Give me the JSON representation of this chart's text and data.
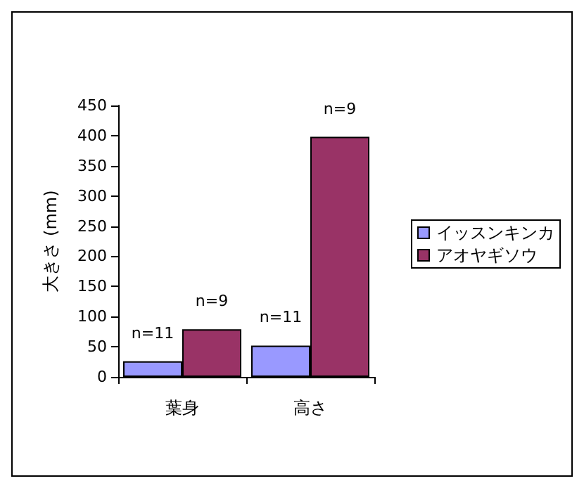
{
  "chart_data": {
    "type": "bar",
    "ylabel": "大きさ (mm)",
    "categories": [
      "葉身",
      "高さ"
    ],
    "series": [
      {
        "name": "イッスンキンカ",
        "color": "#9999ff",
        "values": [
          26,
          52
        ]
      },
      {
        "name": "アオヤギソウ",
        "color": "#993366",
        "values": [
          79,
          398
        ]
      }
    ],
    "annotations": [
      {
        "text": "n=11",
        "x": "葉身",
        "y": 26
      },
      {
        "text": "n=9",
        "x": "葉身",
        "y": 79
      },
      {
        "text": "n=11",
        "x": "高さ",
        "y": 52
      },
      {
        "text": "n=9",
        "x": "高さ",
        "y": 398
      }
    ],
    "ylim": [
      0,
      450
    ],
    "yticks": [
      0,
      50,
      100,
      150,
      200,
      250,
      300,
      350,
      400,
      450
    ],
    "grid": false,
    "legend": "right"
  }
}
